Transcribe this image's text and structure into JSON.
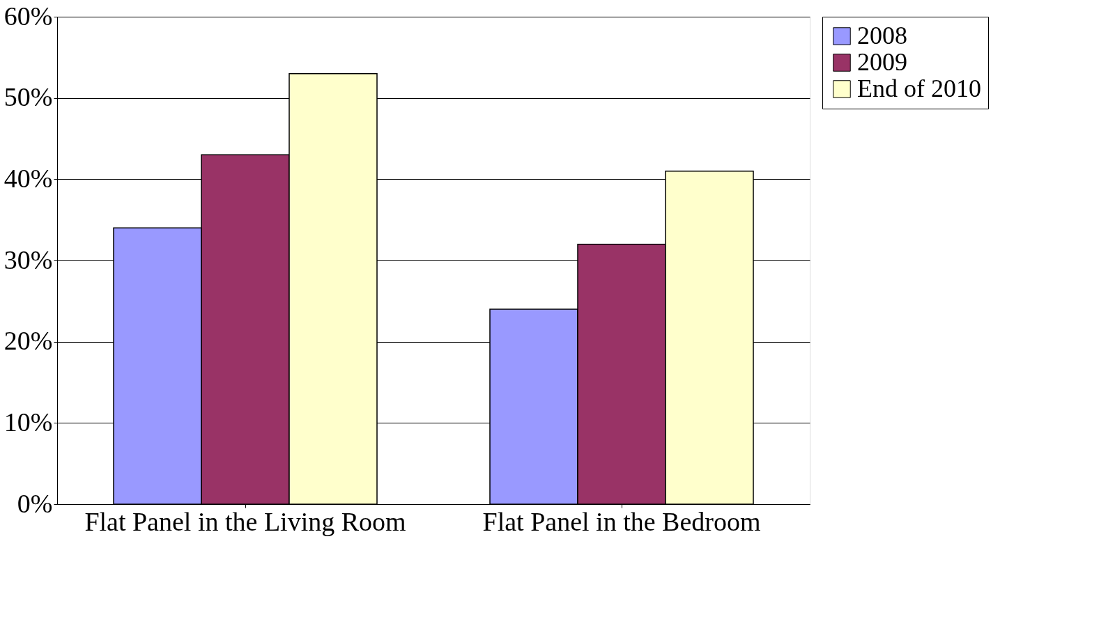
{
  "chart_data": {
    "type": "bar",
    "categories": [
      "Flat Panel in the Living Room",
      "Flat Panel in the Bedroom"
    ],
    "series": [
      {
        "name": "2008",
        "color": "#9999ff",
        "values": [
          0.34,
          0.24
        ]
      },
      {
        "name": "2009",
        "color": "#993366",
        "values": [
          0.43,
          0.32
        ]
      },
      {
        "name": "End of 2010",
        "color": "#ffffcc",
        "values": [
          0.53,
          0.41
        ]
      }
    ],
    "ylim": [
      0,
      0.6
    ],
    "yticks": [
      {
        "value": 0,
        "label": "0%"
      },
      {
        "value": 0.1,
        "label": "10%"
      },
      {
        "value": 0.2,
        "label": "20%"
      },
      {
        "value": 0.3,
        "label": "30%"
      },
      {
        "value": 0.4,
        "label": "40%"
      },
      {
        "value": 0.5,
        "label": "50%"
      },
      {
        "value": 0.6,
        "label": "60%"
      }
    ],
    "grid": "y",
    "legend": "right"
  }
}
